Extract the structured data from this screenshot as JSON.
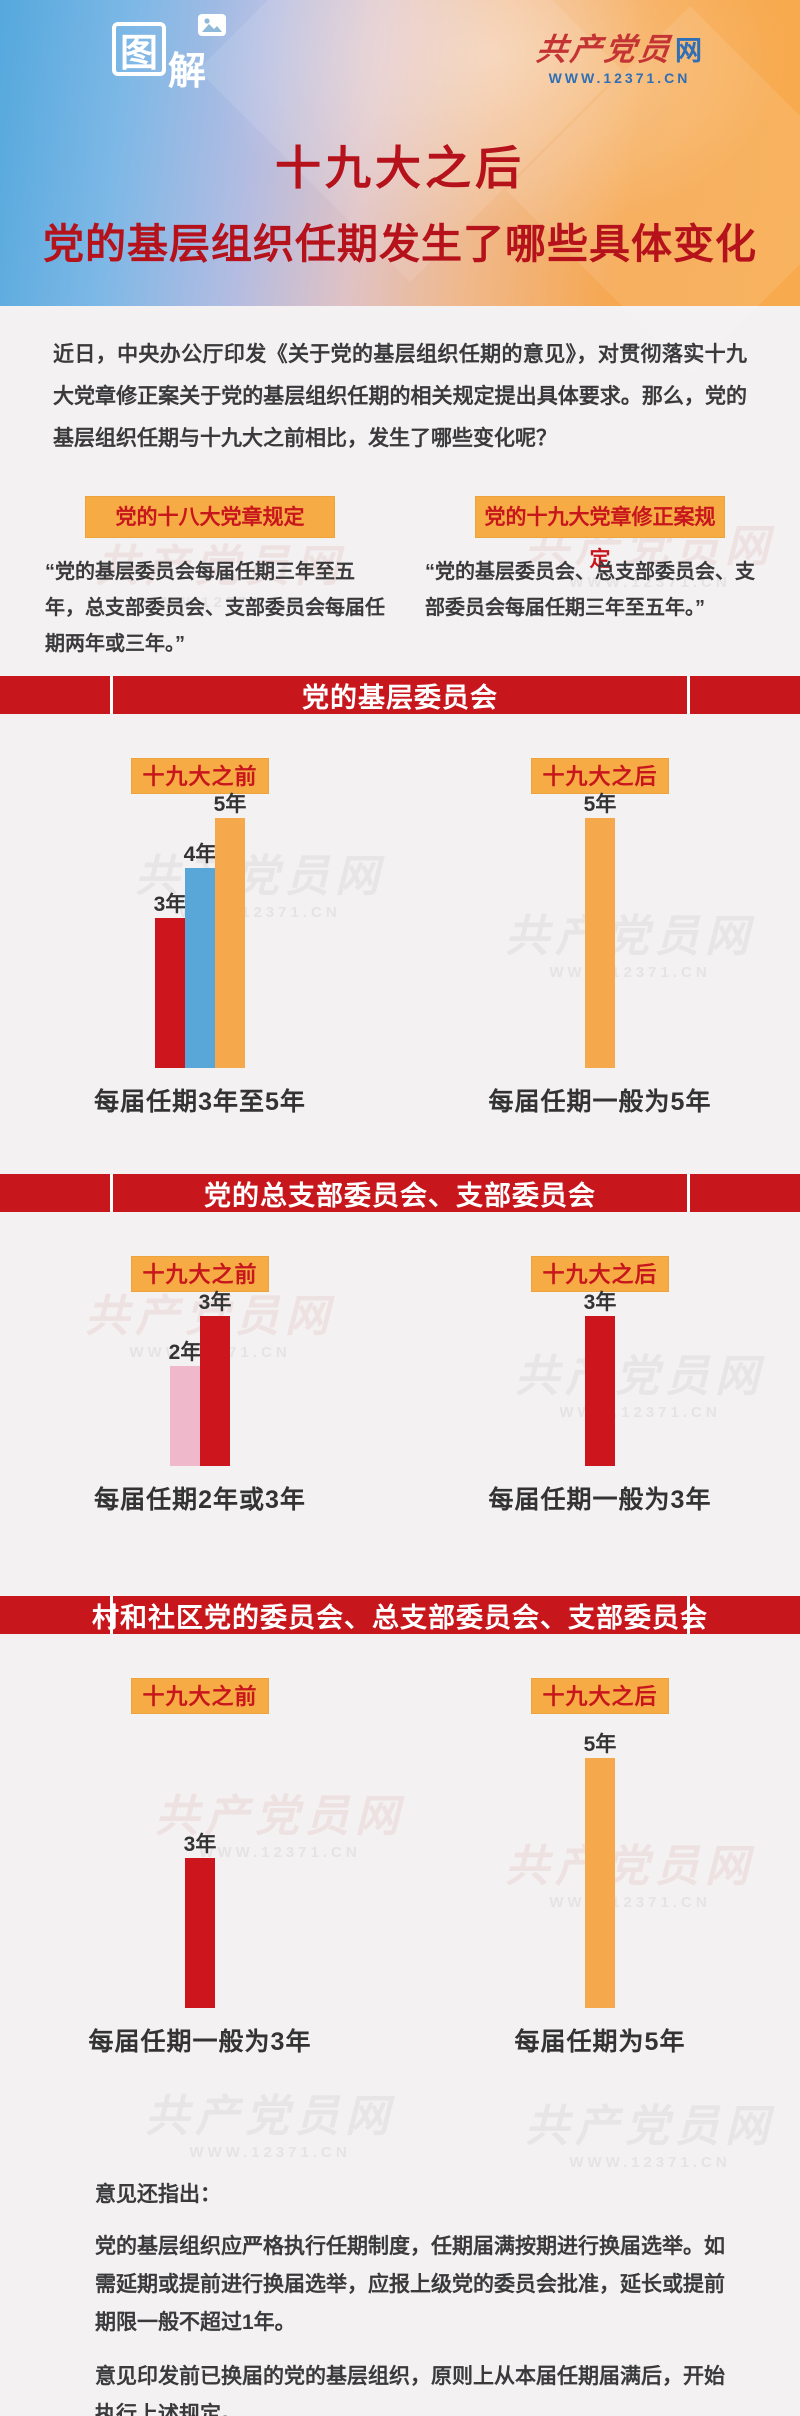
{
  "page_title": "十九大之后 党的基层组织任期发生了哪些具体变化",
  "header": {
    "tujie_logo": {
      "main_char": "图",
      "sub_char": "解"
    },
    "site_logo": {
      "name_red": "共产党员",
      "name_net": "网",
      "url": "WWW.12371.CN"
    },
    "title_line1": "十九大之后",
    "title_line2": "党的基层组织任期发生了哪些具体变化"
  },
  "intro": "近日，中央办公厅印发《关于党的基层组织任期的意见》，对贯彻落实十九大党章修正案关于党的基层组织任期的相关规定提出具体要求。那么，党的基层组织任期与十九大之前相比，发生了哪些变化呢？",
  "comparison": {
    "tag_left": "党的十八大党章规定",
    "tag_right": "党的十九大党章修正案规定",
    "quote_left": "“党的基层委员会每届任期三年至五年，总支部委员会、支部委员会每届任期两年或三年。”",
    "quote_right": "“党的基层委员会、总支部委员会、支部委员会每届任期三年至五年。”"
  },
  "chart_data": [
    {
      "type": "bar",
      "section": "党的基层委员会",
      "unit": "年",
      "ylim": [
        0,
        5
      ],
      "before": {
        "label": "十九大之前",
        "categories": [
          "3年",
          "4年",
          "5年"
        ],
        "values": [
          3,
          4,
          5
        ],
        "colors": [
          "#cc151d",
          "#58a7d8",
          "#f5a94c"
        ],
        "caption": "每届任期3年至5年"
      },
      "after": {
        "label": "十九大之后",
        "categories": [
          "5年"
        ],
        "values": [
          5
        ],
        "colors": [
          "#f5a94c"
        ],
        "caption": "每届任期一般为5年"
      }
    },
    {
      "type": "bar",
      "section": "党的总支部委员会、支部委员会",
      "unit": "年",
      "ylim": [
        0,
        3
      ],
      "before": {
        "label": "十九大之前",
        "categories": [
          "2年",
          "3年"
        ],
        "values": [
          2,
          3
        ],
        "colors": [
          "#f0b9cb",
          "#cc151d"
        ],
        "caption": "每届任期2年或3年"
      },
      "after": {
        "label": "十九大之后",
        "categories": [
          "3年"
        ],
        "values": [
          3
        ],
        "colors": [
          "#cc151d"
        ],
        "caption": "每届任期一般为3年"
      }
    },
    {
      "type": "bar",
      "section": "村和社区党的委员会、总支部委员会、支部委员会",
      "unit": "年",
      "ylim": [
        0,
        5
      ],
      "before": {
        "label": "十九大之前",
        "categories": [
          "3年"
        ],
        "values": [
          3
        ],
        "colors": [
          "#cc151d"
        ],
        "caption": "每届任期一般为3年"
      },
      "after": {
        "label": "十九大之后",
        "categories": [
          "5年"
        ],
        "values": [
          5
        ],
        "colors": [
          "#f5a94c"
        ],
        "caption": "每届任期为5年"
      }
    }
  ],
  "notes": {
    "heading": "意见还指出：",
    "p1": "党的基层组织应严格执行任期制度，任期届满按期进行换届选举。如需延期或提前进行换届选举，应报上级党的委员会批准，延长或提前期限一般不超过1年。",
    "p2": "意见印发前已换届的党的基层组织，原则上从本届任期届满后，开始执行上述规定。"
  },
  "watermark": {
    "line1": "共产党员网",
    "line2": "WWW.12371.CN"
  },
  "colors": {
    "banner_red": "#c8161d",
    "title_red": "#b5121b",
    "tag_orange": "#f6ab44",
    "bar_red": "#cc151d",
    "bar_blue": "#58a7d8",
    "bar_orange": "#f5a94c",
    "bar_pink": "#f0b9cb",
    "text_dark": "#3a3a3c"
  }
}
